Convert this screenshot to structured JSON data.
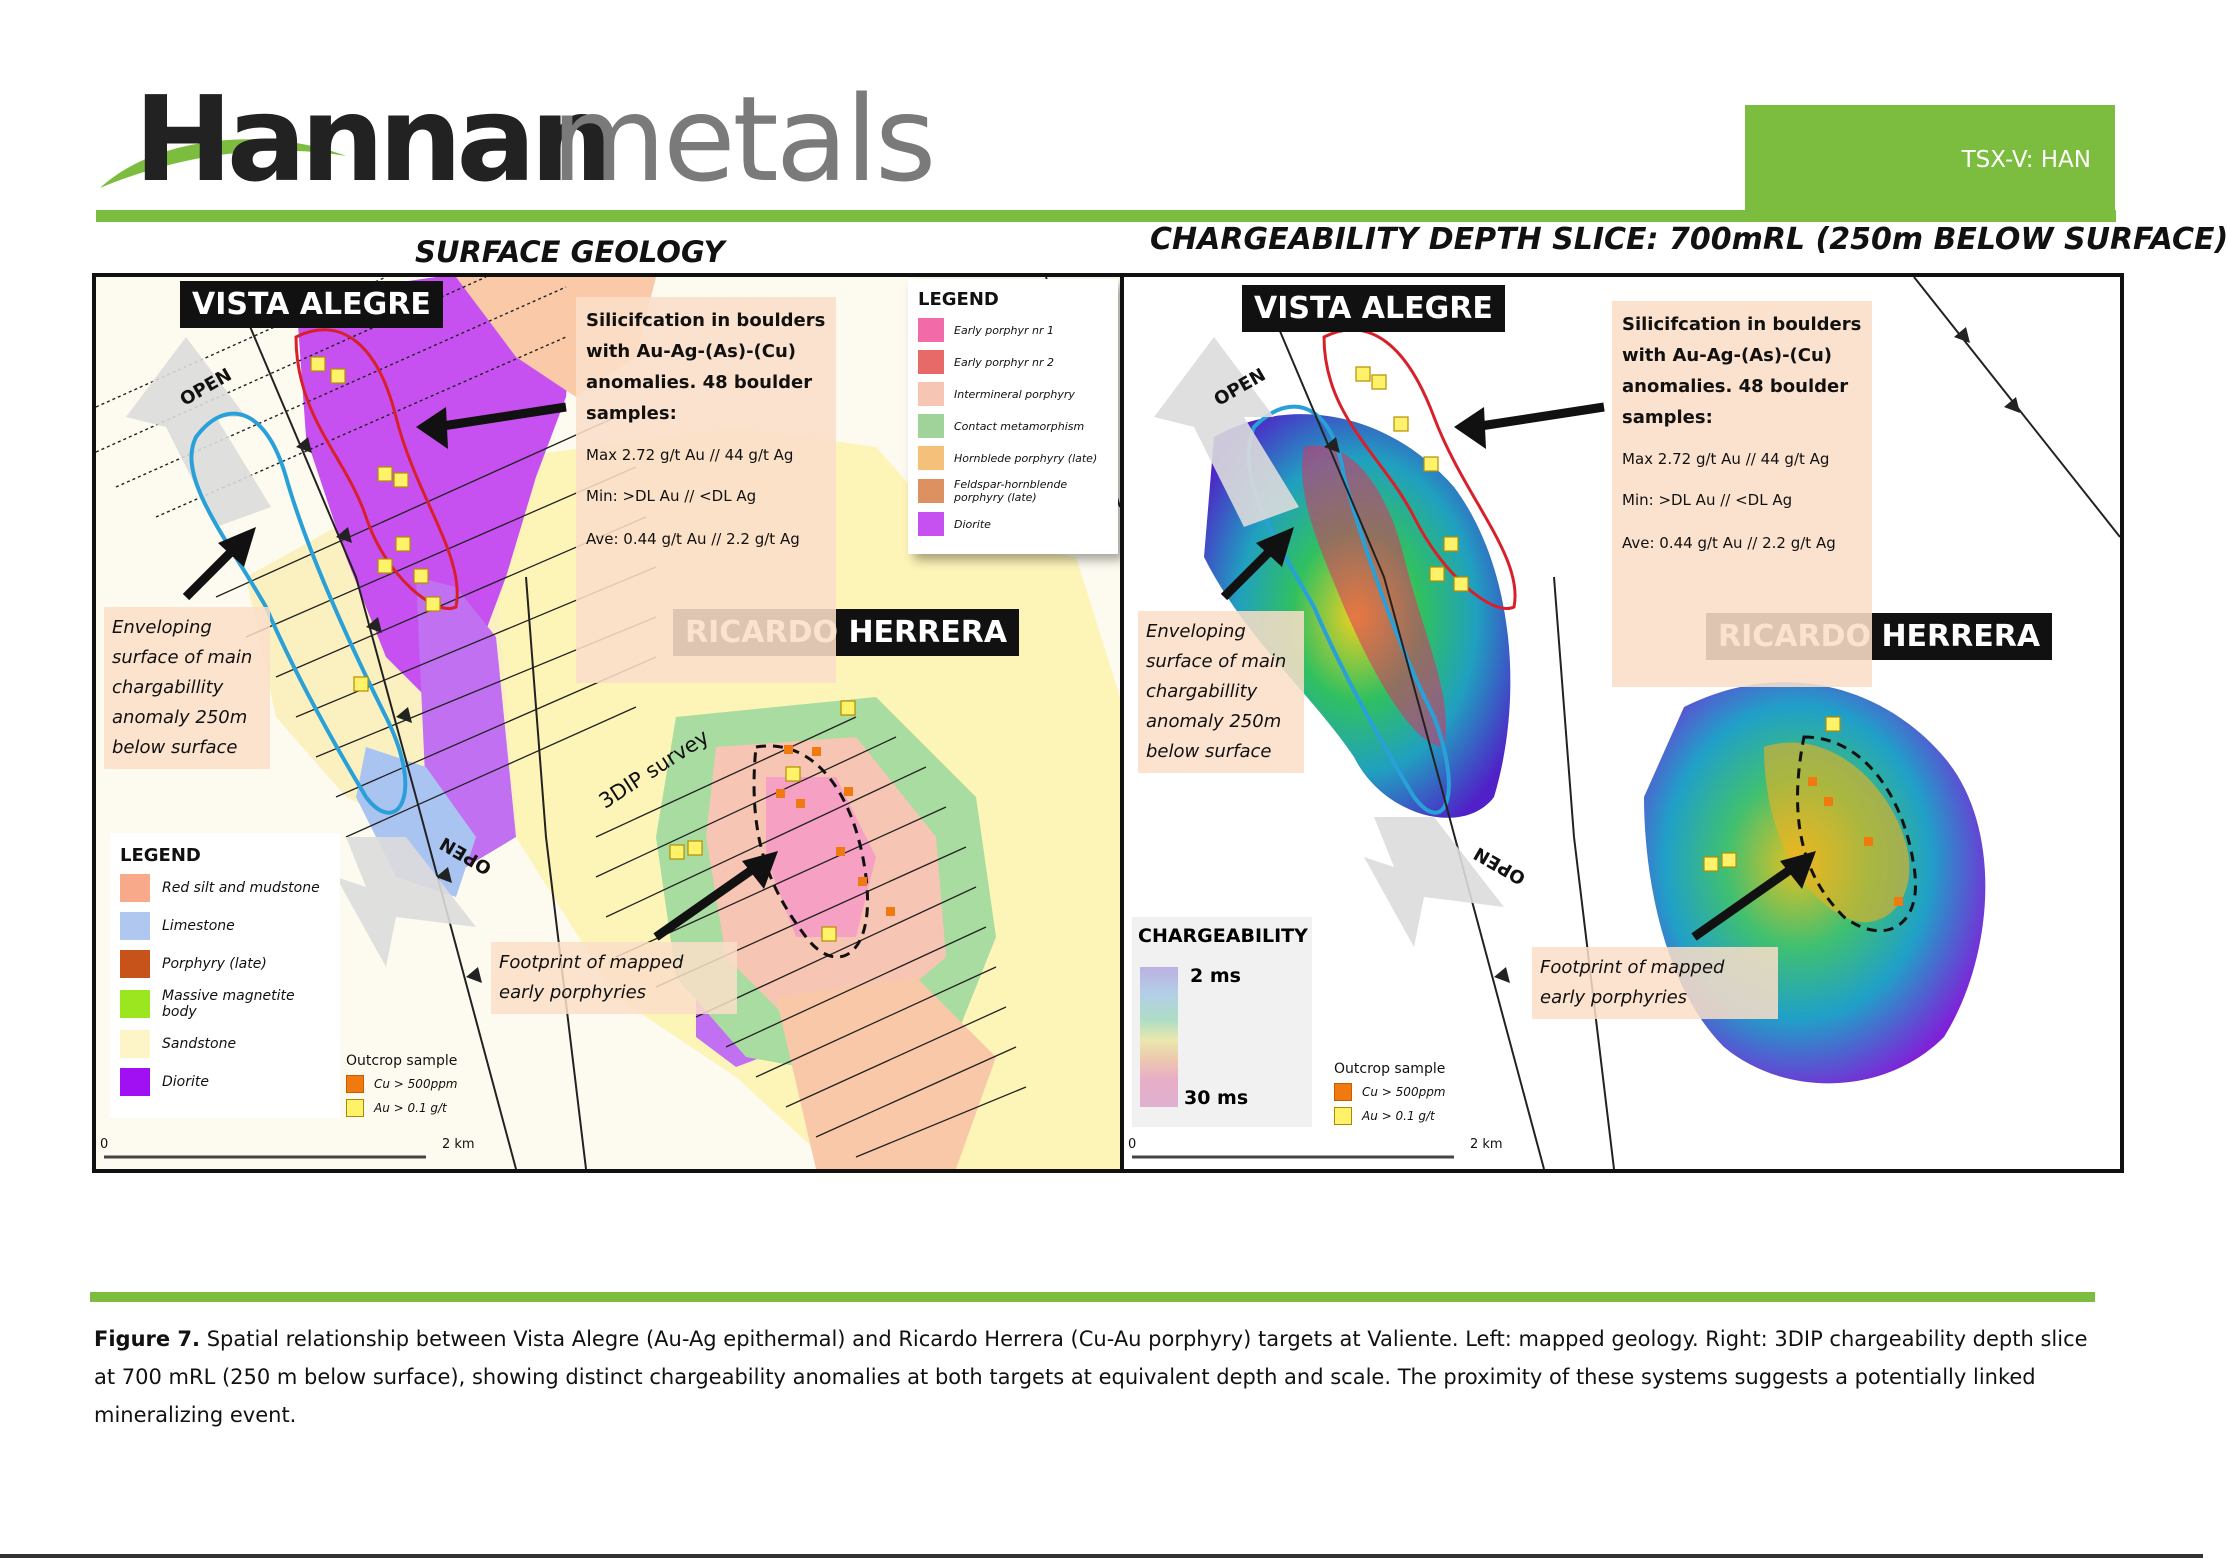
{
  "header": {
    "logo_bold": "Hannan",
    "logo_light": "metals",
    "ticker": "TSX-V: HAN"
  },
  "left_panel": {
    "title": "SURFACE GEOLOGY",
    "vista_alegre_label": "VISTA ALEGRE",
    "ricardo_herrera_label": "RICARDO HERRERA",
    "silicification_note": {
      "heading": "Silicifcation in boulders with Au-Ag-(As)-(Cu) anomalies. 48 boulder samples:",
      "max": "Max 2.72 g/t Au  // 44 g/t Ag",
      "min": "Min: >DL Au //  <DL Ag",
      "ave": "Ave:  0.44 g/t Au // 2.2 g/t Ag"
    },
    "enveloping_note": "Enveloping surface of main chargabillity anomaly 250m below surface",
    "footprint_note": "Footprint of mapped early porphyries",
    "survey_label": "3DIP survey",
    "open_top": "OPEN",
    "open_bottom": "OPEN",
    "legend_main": {
      "title": "LEGEND",
      "items": [
        {
          "label": "Red silt and mudstone",
          "color": "#f7a98a"
        },
        {
          "label": "Limestone",
          "color": "#b0c8f0"
        },
        {
          "label": "Porphyry (late)",
          "color": "#c7531a"
        },
        {
          "label": "Massive magnetite body",
          "color": "#9be61f"
        },
        {
          "label": "Sandstone",
          "color": "#fdf4c8"
        },
        {
          "label": "Diorite",
          "color": "#a010f2"
        }
      ]
    },
    "legend_small": {
      "title": "LEGEND",
      "items": [
        {
          "label": "Early porphyr nr 1",
          "color": "#f36aa8"
        },
        {
          "label": "Early porphyr nr 2",
          "color": "#e86a68"
        },
        {
          "label": "Intermineral porphyry",
          "color": "#f7c5b3"
        },
        {
          "label": "Contact metamorphism",
          "color": "#9fd39a"
        },
        {
          "label": "Hornblede porphyry (late)",
          "color": "#f4c07a"
        },
        {
          "label": "Feldspar-hornblende porphyry (late)",
          "color": "#dd9060"
        },
        {
          "label": "Diorite",
          "color": "#c651f0"
        }
      ]
    },
    "outcrop": {
      "title": "Outcrop sample",
      "cu": "Cu > 500ppm",
      "au": "Au > 0.1 g/t",
      "cu_color": "#f07a10",
      "au_color": "#fdf26a"
    },
    "scale": {
      "zero": "0",
      "end": "2 km"
    }
  },
  "right_panel": {
    "title": "CHARGEABILITY DEPTH SLICE: 700mRL (250m BELOW SURFACE)",
    "vista_alegre_label": "VISTA ALEGRE",
    "ricardo_herrera_label": "RICARDO HERRERA",
    "silicification_note": {
      "heading": "Silicifcation in boulders with Au-Ag-(As)-(Cu) anomalies. 48 boulder samples:",
      "max": "Max 2.72 g/t Au  // 44 g/t Ag",
      "min": "Min: >DL Au //  <DL Ag",
      "ave": "Ave:  0.44 g/t Au // 2.2 g/t Ag"
    },
    "enveloping_note": "Enveloping surface of main chargabillity anomaly 250m below surface",
    "footprint_note": "Footprint of mapped early porphyries",
    "open_top": "OPEN",
    "open_bottom": "OPEN",
    "chargeability": {
      "title": "CHARGEABILITY",
      "low": "2 ms",
      "high": "30 ms"
    },
    "outcrop": {
      "title": "Outcrop sample",
      "cu": "Cu > 500ppm",
      "au": "Au > 0.1 g/t"
    },
    "scale": {
      "zero": "0",
      "end": "2 km"
    }
  },
  "caption": {
    "label": "Figure 7.",
    "text": " Spatial relationship between Vista Alegre (Au-Ag epithermal) and Ricardo Herrera (Cu-Au porphyry) targets at Valiente. Left: mapped geology. Right: 3DIP chargeability depth slice at 700 mRL (250 m below surface), showing distinct chargeability anomalies at both targets at equivalent depth and scale. The proximity of these systems suggests a potentially linked mineralizing event."
  },
  "colors": {
    "brand_green": "#7cbd3f",
    "outline_red": "#d8202a",
    "outline_blue": "#2aa0d8"
  }
}
